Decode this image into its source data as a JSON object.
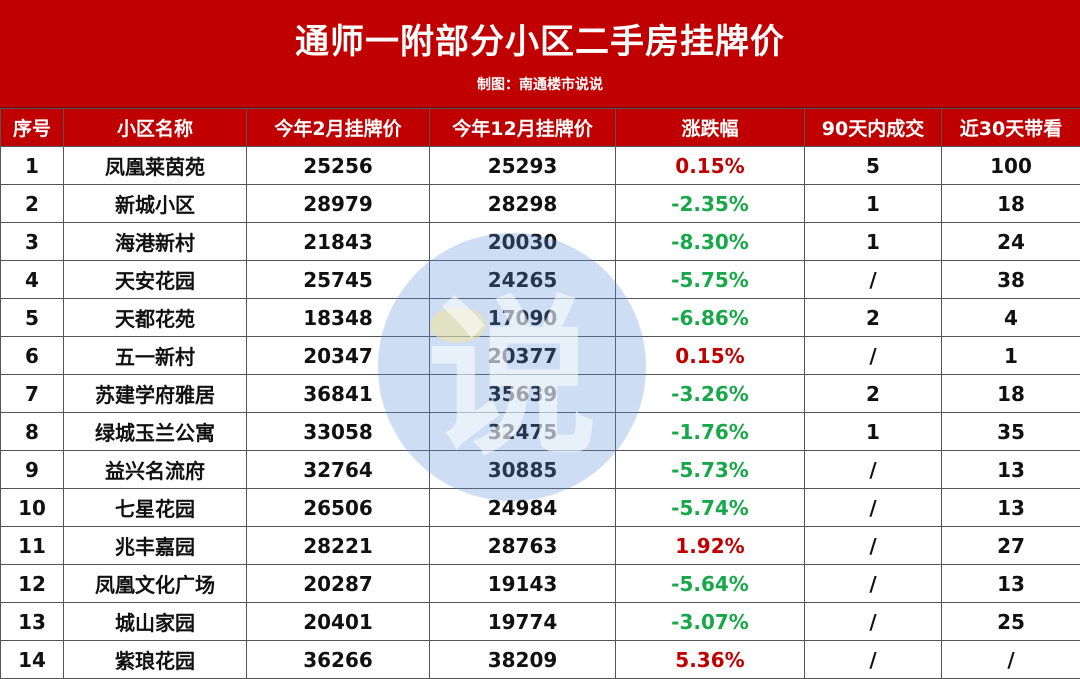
{
  "header": {
    "title": "通师一附部分小区二手房挂牌价",
    "credit": "制图：南通楼市说说"
  },
  "table": {
    "columns": [
      "序号",
      "小区名称",
      "今年2月挂牌价",
      "今年12月挂牌价",
      "涨跌幅",
      "90天内成交",
      "近30天带看"
    ],
    "rows": [
      {
        "no": "1",
        "name": "凤凰莱茵苑",
        "feb": "25256",
        "dec": "25293",
        "change": "0.15%",
        "dir": "up",
        "deals": "5",
        "visits": "100"
      },
      {
        "no": "2",
        "name": "新城小区",
        "feb": "28979",
        "dec": "28298",
        "change": "-2.35%",
        "dir": "down",
        "deals": "1",
        "visits": "18"
      },
      {
        "no": "3",
        "name": "海港新村",
        "feb": "21843",
        "dec": "20030",
        "change": "-8.30%",
        "dir": "down",
        "deals": "1",
        "visits": "24"
      },
      {
        "no": "4",
        "name": "天安花园",
        "feb": "25745",
        "dec": "24265",
        "change": "-5.75%",
        "dir": "down",
        "deals": "/",
        "visits": "38"
      },
      {
        "no": "5",
        "name": "天都花苑",
        "feb": "18348",
        "dec": "17090",
        "change": "-6.86%",
        "dir": "down",
        "deals": "2",
        "visits": "4"
      },
      {
        "no": "6",
        "name": "五一新村",
        "feb": "20347",
        "dec": "20377",
        "change": "0.15%",
        "dir": "up",
        "deals": "/",
        "visits": "1"
      },
      {
        "no": "7",
        "name": "苏建学府雅居",
        "feb": "36841",
        "dec": "35639",
        "change": "-3.26%",
        "dir": "down",
        "deals": "2",
        "visits": "18"
      },
      {
        "no": "8",
        "name": "绿城玉兰公寓",
        "feb": "33058",
        "dec": "32475",
        "change": "-1.76%",
        "dir": "down",
        "deals": "1",
        "visits": "35"
      },
      {
        "no": "9",
        "name": "益兴名流府",
        "feb": "32764",
        "dec": "30885",
        "change": "-5.73%",
        "dir": "down",
        "deals": "/",
        "visits": "13"
      },
      {
        "no": "10",
        "name": "七星花园",
        "feb": "26506",
        "dec": "24984",
        "change": "-5.74%",
        "dir": "down",
        "deals": "/",
        "visits": "13"
      },
      {
        "no": "11",
        "name": "兆丰嘉园",
        "feb": "28221",
        "dec": "28763",
        "change": "1.92%",
        "dir": "up",
        "deals": "/",
        "visits": "27"
      },
      {
        "no": "12",
        "name": "凤凰文化广场",
        "feb": "20287",
        "dec": "19143",
        "change": "-5.64%",
        "dir": "down",
        "deals": "/",
        "visits": "13"
      },
      {
        "no": "13",
        "name": "城山家园",
        "feb": "20401",
        "dec": "19774",
        "change": "-3.07%",
        "dir": "down",
        "deals": "/",
        "visits": "25"
      },
      {
        "no": "14",
        "name": "紫琅花园",
        "feb": "36266",
        "dec": "38209",
        "change": "5.36%",
        "dir": "up",
        "deals": "/",
        "visits": "/"
      }
    ]
  },
  "watermark": {
    "text": "说",
    "color": "#5b8fd9"
  },
  "colors": {
    "header_red": "#c00000",
    "up_red": "#c00000",
    "down_green": "#18a84a"
  }
}
